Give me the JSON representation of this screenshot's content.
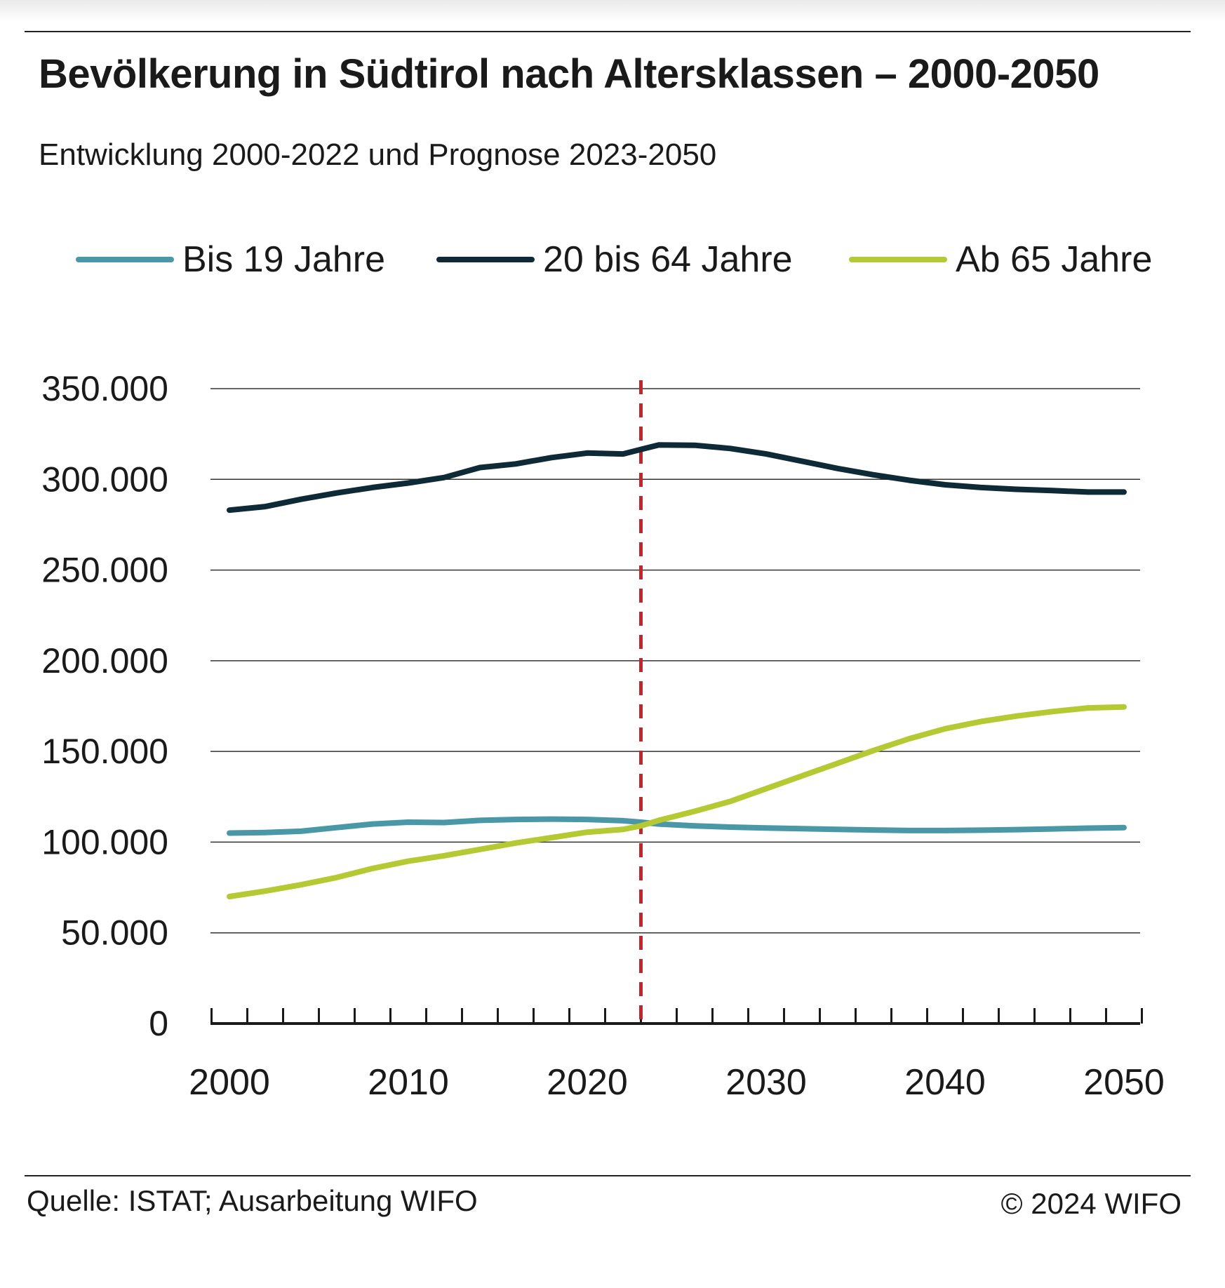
{
  "header": {
    "title": "Bevölkerung in Südtirol nach Altersklassen – 2000-2050",
    "subtitle": "Entwicklung 2000-2022 und Prognose 2023-2050"
  },
  "footer": {
    "source": "Quelle: ISTAT; Ausarbeitung WIFO",
    "copyright": "© 2024 WIFO"
  },
  "chart_data": {
    "type": "line",
    "title": "Bevölkerung in Südtirol nach Altersklassen – 2000-2050",
    "subtitle": "Entwicklung 2000-2022 und Prognose 2023-2050",
    "xlabel": "",
    "ylabel": "",
    "xlim": [
      2000,
      2050
    ],
    "ylim": [
      0,
      350000
    ],
    "yticks": [
      0,
      50000,
      100000,
      150000,
      200000,
      250000,
      300000,
      350000
    ],
    "ytick_labels": [
      "0",
      "50.000",
      "100.000",
      "150.000",
      "200.000",
      "250.000",
      "300.000",
      "350.000"
    ],
    "xtick_labels": [
      "2000",
      "2010",
      "2020",
      "2030",
      "2040",
      "2050"
    ],
    "xticks": [
      2000,
      2010,
      2020,
      2030,
      2040,
      2050
    ],
    "grid": true,
    "legend_position": "top",
    "forecast_start": 2023,
    "forecast_line_color": "#c0272d",
    "series": [
      {
        "name": "Bis 19 Jahre",
        "color": "#4a97a8",
        "x": [
          2000,
          2002,
          2004,
          2006,
          2008,
          2010,
          2012,
          2014,
          2016,
          2018,
          2020,
          2022,
          2023,
          2024,
          2026,
          2028,
          2030,
          2032,
          2034,
          2036,
          2038,
          2040,
          2042,
          2044,
          2046,
          2048,
          2050
        ],
        "values": [
          105000,
          105300,
          106000,
          108000,
          110000,
          111000,
          110800,
          112000,
          112500,
          112700,
          112500,
          111800,
          111000,
          110000,
          109000,
          108300,
          107800,
          107400,
          107000,
          106700,
          106400,
          106400,
          106600,
          106900,
          107300,
          107700,
          108000
        ]
      },
      {
        "name": "20 bis 64 Jahre",
        "color": "#0e2a36",
        "x": [
          2000,
          2002,
          2004,
          2006,
          2008,
          2010,
          2012,
          2014,
          2016,
          2018,
          2020,
          2022,
          2023,
          2024,
          2026,
          2028,
          2030,
          2032,
          2034,
          2036,
          2038,
          2040,
          2042,
          2044,
          2046,
          2048,
          2050
        ],
        "values": [
          283000,
          285000,
          289000,
          292500,
          295500,
          298000,
          301000,
          306500,
          308500,
          312000,
          314500,
          314000,
          316500,
          319000,
          318800,
          317000,
          314000,
          310000,
          306000,
          302500,
          299500,
          297000,
          295500,
          294500,
          293800,
          293000,
          293000
        ]
      },
      {
        "name": "Ab 65 Jahre",
        "color": "#b5c932",
        "x": [
          2000,
          2002,
          2004,
          2006,
          2008,
          2010,
          2012,
          2014,
          2016,
          2018,
          2020,
          2022,
          2023,
          2024,
          2026,
          2028,
          2030,
          2032,
          2034,
          2036,
          2038,
          2040,
          2042,
          2044,
          2046,
          2048,
          2050
        ],
        "values": [
          70000,
          73000,
          76500,
          80500,
          85500,
          89500,
          92500,
          96000,
          99500,
          102500,
          105500,
          107000,
          109000,
          112000,
          117000,
          122500,
          129500,
          136500,
          143500,
          150500,
          157000,
          162500,
          166500,
          169500,
          172000,
          174000,
          174500
        ]
      }
    ]
  }
}
